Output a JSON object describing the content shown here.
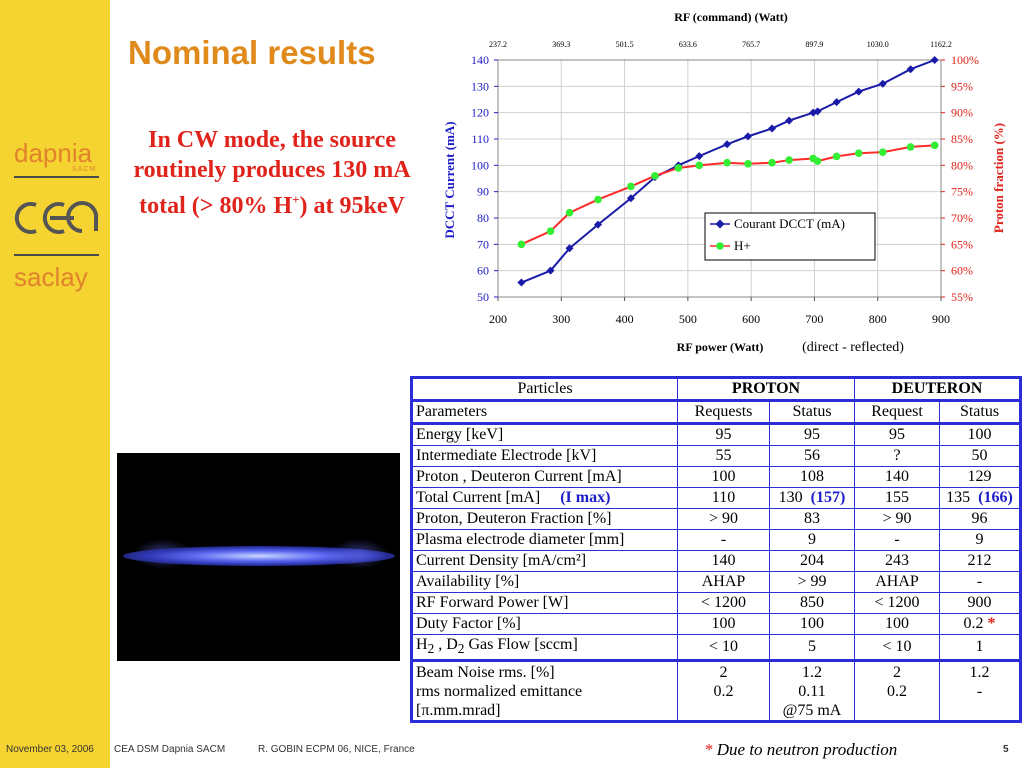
{
  "slide": {
    "title": "Nominal results",
    "claim_line1": "In CW mode, the source routinely produces     130 mA total (> 80% H",
    "claim_sup": "+",
    "claim_line2": ") at 95keV"
  },
  "logos": {
    "dapnia": "dapnia",
    "sacm": "SACM",
    "cea": "cea",
    "saclay": "saclay"
  },
  "chart_data": {
    "type": "line",
    "title": "RF (command) (Watt)",
    "top_ticks": [
      "237.2",
      "369.3",
      "501.5",
      "633.6",
      "765.7",
      "897.9",
      "1030.0",
      "1162.2"
    ],
    "xlabel": "RF power (Watt)",
    "xlabel_note": "(direct - reflected)",
    "ylabel": "DCCT Current (mA)",
    "y2label": "Proton fraction (%)",
    "xlim": [
      200,
      900
    ],
    "ylim": [
      50,
      140
    ],
    "y2lim": [
      55,
      100
    ],
    "x_ticks": [
      200,
      300,
      400,
      500,
      600,
      700,
      800,
      900
    ],
    "y_ticks": [
      50,
      60,
      70,
      80,
      90,
      100,
      110,
      120,
      130,
      140
    ],
    "y2_ticks": [
      "55%",
      "60%",
      "65%",
      "70%",
      "75%",
      "80%",
      "85%",
      "90%",
      "95%",
      "100%"
    ],
    "legend_position": "center-right",
    "grid": true,
    "series": [
      {
        "name": "Courant DCCT (mA)",
        "axis": "left",
        "color": "#1a1aa8",
        "marker": "diamond",
        "x": [
          237,
          283,
          313,
          358,
          410,
          448,
          485,
          518,
          562,
          595,
          633,
          660,
          698,
          705,
          735,
          770,
          808,
          852,
          890
        ],
        "y": [
          55.5,
          60,
          68.5,
          77.5,
          87.5,
          95.5,
          100,
          103.5,
          108,
          111,
          114,
          117,
          120,
          120.5,
          124,
          128,
          131,
          136.5,
          140
        ]
      },
      {
        "name": "H+",
        "axis": "right",
        "color": "#ff2a2a",
        "marker_color": "#33ee33",
        "marker": "circle",
        "x": [
          237,
          283,
          313,
          358,
          410,
          448,
          485,
          518,
          562,
          595,
          633,
          660,
          698,
          705,
          735,
          770,
          808,
          852,
          890
        ],
        "y": [
          65,
          67.5,
          71,
          73.5,
          76,
          78,
          79.5,
          80,
          80.5,
          80.3,
          80.5,
          81,
          81.3,
          80.8,
          81.7,
          82.3,
          82.5,
          83.5,
          83.8
        ]
      }
    ]
  },
  "table": {
    "header": {
      "particles": "Particles",
      "proton": "PROTON",
      "deuteron": "DEUTERON"
    },
    "subheader": {
      "parameters": "Parameters",
      "p_req": "Requests",
      "p_status": "Status",
      "d_req": "Request",
      "d_status": "Status"
    },
    "rows": [
      {
        "label": "Energy [keV]",
        "p_req": "95",
        "p_status": "95",
        "d_req": "95",
        "d_status": "100"
      },
      {
        "label": "Intermediate Electrode [kV]",
        "p_req": "55",
        "p_status": "56",
        "d_req": "?",
        "d_status": "50"
      },
      {
        "label": "Proton , Deuteron Current [mA]",
        "p_req": "100",
        "p_status": "108",
        "d_req": "140",
        "d_status": "129"
      },
      {
        "label": "Total Current [mA]",
        "label_note": "(I max)",
        "p_req": "110",
        "p_status": "130",
        "p_status_note": "(157)",
        "d_req": "155",
        "d_status": "135",
        "d_status_note": "(166)"
      },
      {
        "label": "Proton, Deuteron Fraction [%]",
        "p_req": "> 90",
        "p_status": "83",
        "d_req": "> 90",
        "d_status": "96"
      },
      {
        "label": "Plasma electrode diameter [mm]",
        "p_req": "-",
        "p_status": "9",
        "d_req": "-",
        "d_status": "9"
      },
      {
        "label": "Current Density [mA/cm²]",
        "p_req": "140",
        "p_status": "204",
        "d_req": "243",
        "d_status": "212"
      },
      {
        "label": "Availability [%]",
        "p_req": "AHAP",
        "p_status": "> 99",
        "d_req": "AHAP",
        "d_status": "-"
      },
      {
        "label": "RF Forward Power [W]",
        "p_req": "< 1200",
        "p_status": "850",
        "d_req": "< 1200",
        "d_status": "900"
      },
      {
        "label": "Duty Factor [%]",
        "p_req": "100",
        "p_status": "100",
        "d_req": "100",
        "d_status": "0.2",
        "d_status_mark": "*"
      },
      {
        "label_h": "H",
        "label_h_sub": "2",
        "label_d": " , D",
        "label_d_sub": "2",
        "label_rest": " Gas Flow [sccm]",
        "p_req": "< 10",
        "p_status": "5",
        "d_req": "< 10",
        "d_status": "1"
      }
    ],
    "last_row": {
      "label1": "Beam Noise  rms. [%]",
      "label2": "rms normalized emittance",
      "label3": "[π.mm.mrad]",
      "p_req1": "2",
      "p_req2": "0.2",
      "p_status1": "1.2",
      "p_status2": "0.11",
      "p_status3": "@75 mA",
      "d_req1": "2",
      "d_req2": "0.2",
      "d_status1": "1.2",
      "d_status2": "-"
    }
  },
  "footnote": {
    "star": "*",
    "text": " Due to neutron production"
  },
  "footer": {
    "date": "November 03,  2006",
    "org": "CEA DSM Dapnia SACM",
    "author": "R. GOBIN   ECPM 06, NICE, France",
    "page": "5"
  }
}
